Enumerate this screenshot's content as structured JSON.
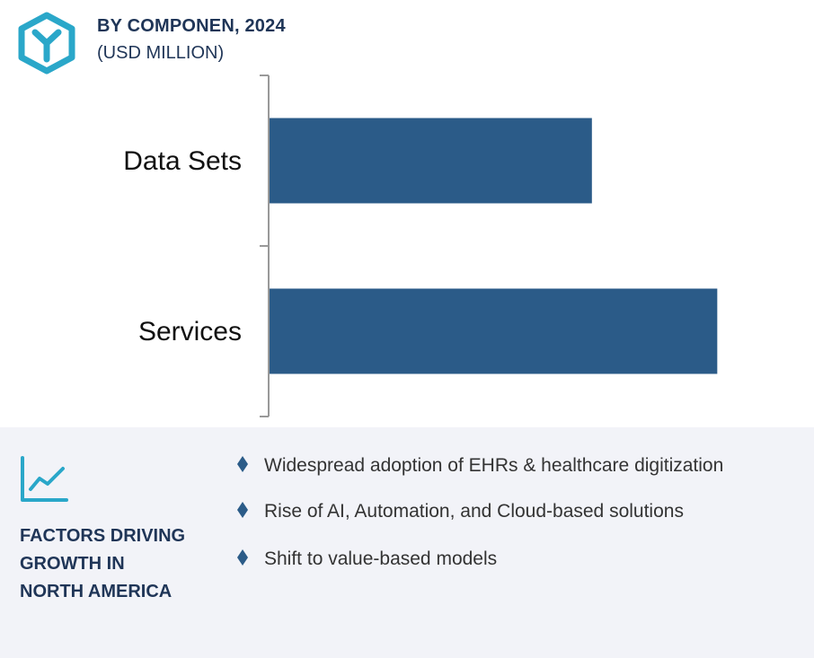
{
  "header": {
    "title": "BY COMPONEN, 2024",
    "subtitle": "(USD MILLION)",
    "logo_icon": "hexagon-y-logo-icon",
    "accent_color": "#2aa7c9"
  },
  "chart_data": {
    "type": "bar",
    "orientation": "horizontal",
    "categories": [
      "Data Sets",
      "Services"
    ],
    "values": [
      72,
      100
    ],
    "xlim": [
      0,
      120
    ],
    "xlabel": "",
    "ylabel": "",
    "grid": false,
    "bar_color": "#2b5b88"
  },
  "factors": {
    "icon": "line-chart-icon",
    "title_lines": [
      "FACTORS DRIVING",
      "GROWTH IN",
      "NORTH AMERICA"
    ],
    "items": [
      "Widespread adoption of EHRs & healthcare digitization",
      "Rise of AI, Automation, and Cloud-based solutions",
      "Shift to value-based models"
    ],
    "bullet_color": "#2b5b88"
  }
}
